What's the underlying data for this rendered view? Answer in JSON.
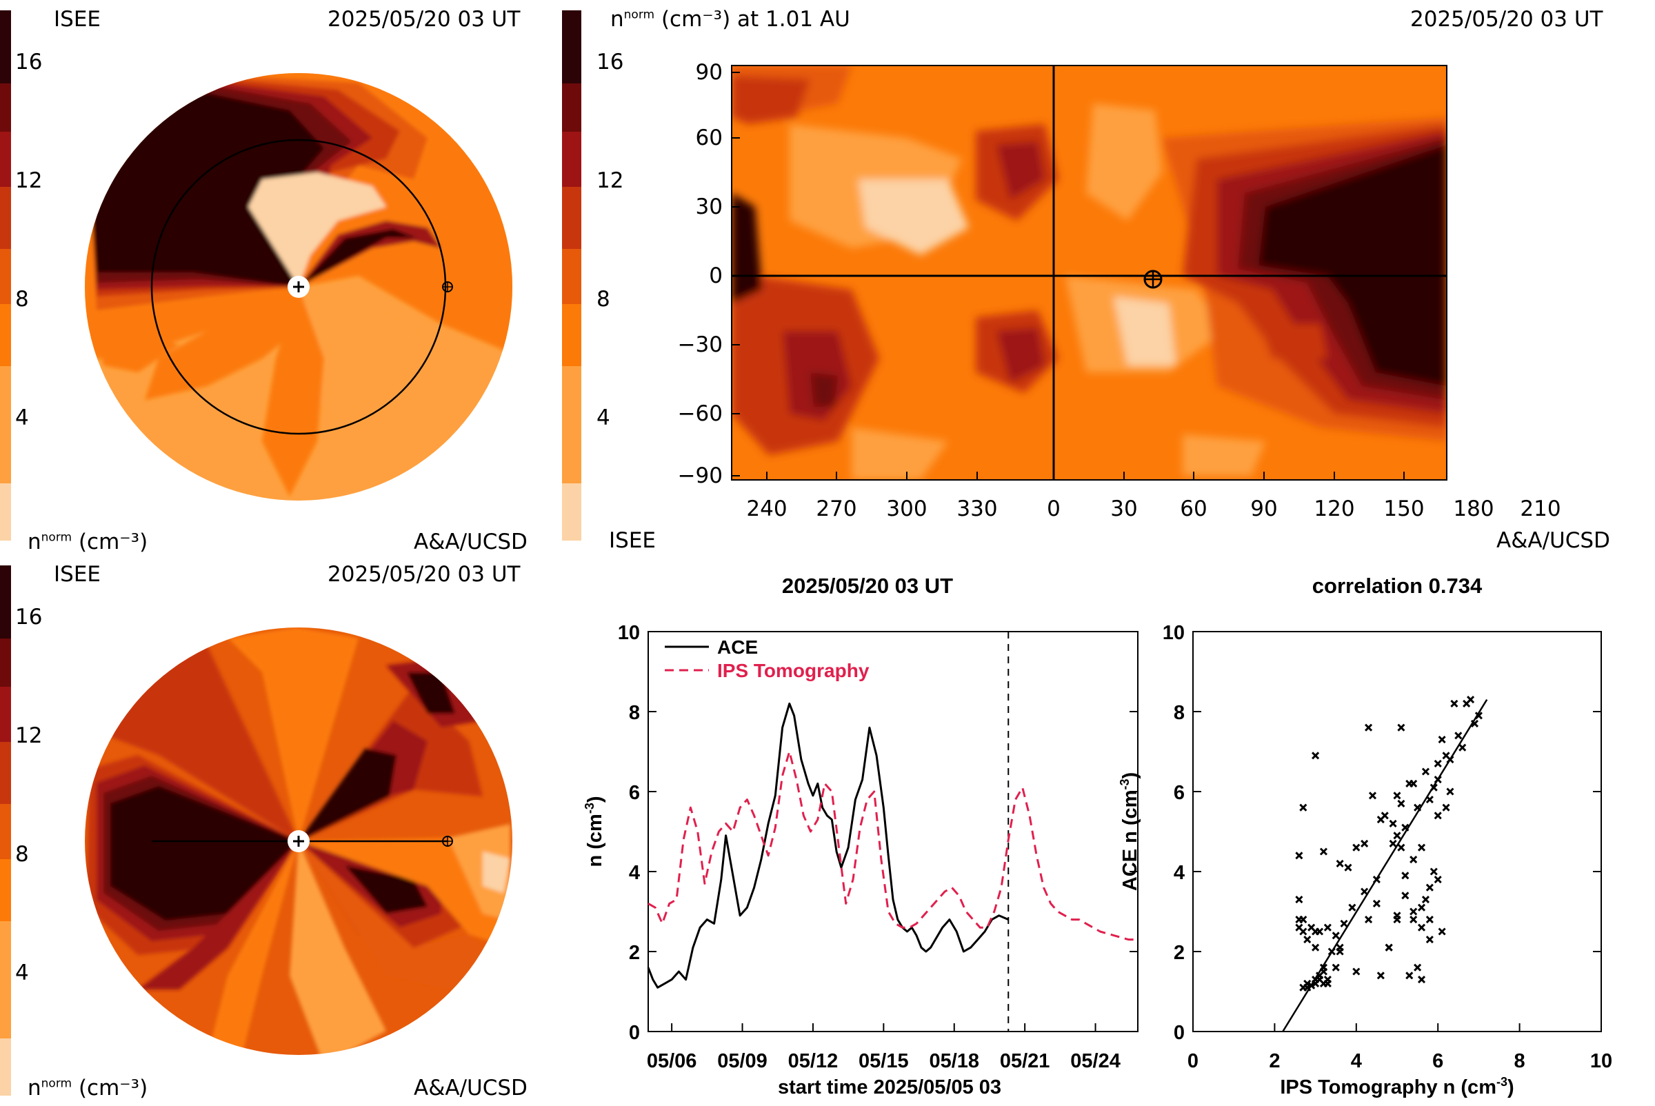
{
  "colors": {
    "scale": [
      "#fcd3a6",
      "#fea03f",
      "#fc7a08",
      "#e65a0a",
      "#c8360e",
      "#9e1414",
      "#6e0a0a",
      "#2c0306"
    ],
    "tomography": "#e0204d",
    "ace": "#000000"
  },
  "panel_tl": {
    "left_top": "ISEE",
    "right_top": "2025/05/20 03 UT",
    "left_bottom_base": "n",
    "left_bottom_sup": "norm",
    "left_bottom_unit": "(cm⁻³)",
    "right_bottom": "A&A/UCSD",
    "colorbar_ticks": [
      "16",
      "12",
      "8",
      "4"
    ],
    "earth_marker": "earth-symbol"
  },
  "panel_tr": {
    "title_base": "n",
    "title_sup": "norm",
    "title_rest": "(cm⁻³) at 1.01 AU",
    "right_top": "2025/05/20 03 UT",
    "bottom_left": "ISEE",
    "bottom_right": "A&A/UCSD",
    "colorbar_ticks": [
      "16",
      "12",
      "8",
      "4"
    ],
    "x_ticks": [
      "240",
      "270",
      "300",
      "330",
      "0",
      "30",
      "60",
      "90",
      "120",
      "150",
      "180",
      "210"
    ],
    "y_ticks": [
      "90",
      "60",
      "30",
      "0",
      "−30",
      "−60",
      "−90"
    ]
  },
  "panel_bl": {
    "left_top": "ISEE",
    "right_top": "2025/05/20 03 UT",
    "left_bottom_base": "n",
    "left_bottom_sup": "norm",
    "left_bottom_unit": "(cm⁻³)",
    "right_bottom": "A&A/UCSD",
    "colorbar_ticks": [
      "16",
      "12",
      "8",
      "4"
    ]
  },
  "chart_data": [
    {
      "type": "line",
      "title": "2025/05/20 03 UT",
      "xlabel": "start time 2025/05/05 03",
      "ylabel": "n (cm⁻³)",
      "xlim": [
        0,
        20.8
      ],
      "ylim": [
        0,
        10
      ],
      "x_tick_positions": [
        1,
        4,
        7,
        10,
        13,
        16,
        19
      ],
      "x_tick_labels": [
        "05/06",
        "05/09",
        "05/12",
        "05/15",
        "05/18",
        "05/21",
        "05/24"
      ],
      "y_ticks": [
        0,
        2,
        4,
        6,
        8,
        10
      ],
      "vline": 15.3,
      "legend": "top-left",
      "series": [
        {
          "name": "ACE",
          "style": "solid",
          "x": [
            0,
            0.2,
            0.4,
            0.7,
            1,
            1.3,
            1.6,
            1.9,
            2.2,
            2.5,
            2.8,
            3.1,
            3.3,
            3.6,
            3.9,
            4.2,
            4.5,
            4.8,
            5.1,
            5.4,
            5.7,
            6,
            6.2,
            6.5,
            6.8,
            7,
            7.2,
            7.4,
            7.6,
            7.8,
            8,
            8.2,
            8.5,
            8.8,
            9.1,
            9.4,
            9.7,
            10,
            10.2,
            10.4,
            10.6,
            10.8,
            11,
            11.2,
            11.4,
            11.6,
            11.8,
            12,
            12.2,
            12.5,
            12.8,
            13.1,
            13.4,
            13.7,
            14,
            14.3,
            14.6,
            14.9,
            15.3
          ],
          "y": [
            1.6,
            1.3,
            1.1,
            1.2,
            1.3,
            1.5,
            1.3,
            2.1,
            2.6,
            2.8,
            2.7,
            3.8,
            4.9,
            3.9,
            2.9,
            3.1,
            3.6,
            4.3,
            5.2,
            5.9,
            7.6,
            8.2,
            7.9,
            6.8,
            6.2,
            5.9,
            6.2,
            5.6,
            5.4,
            5.3,
            4.5,
            4.1,
            4.6,
            5.8,
            6.3,
            7.6,
            6.9,
            5.6,
            4.4,
            3.3,
            2.8,
            2.6,
            2.5,
            2.6,
            2.4,
            2.1,
            2.0,
            2.1,
            2.3,
            2.6,
            2.8,
            2.5,
            2.0,
            2.1,
            2.3,
            2.5,
            2.8,
            2.9,
            2.8
          ]
        },
        {
          "name": "IPS Tomography",
          "style": "dashed",
          "x": [
            0,
            0.3,
            0.6,
            0.9,
            1.2,
            1.5,
            1.8,
            2.1,
            2.4,
            2.7,
            3,
            3.3,
            3.6,
            3.9,
            4.2,
            4.5,
            4.8,
            5.1,
            5.4,
            5.7,
            6,
            6.3,
            6.6,
            6.9,
            7.2,
            7.5,
            7.8,
            8.1,
            8.4,
            8.7,
            9,
            9.3,
            9.6,
            9.9,
            10.2,
            10.5,
            10.8,
            11.1,
            11.4,
            11.7,
            12,
            12.3,
            12.6,
            12.9,
            13.2,
            13.5,
            13.8,
            14.1,
            14.4,
            14.7,
            15,
            15.3,
            15.6,
            15.9,
            16.2,
            16.5,
            16.8,
            17.1,
            17.4,
            17.7,
            18,
            18.3,
            18.6,
            18.9,
            19.2,
            19.5,
            19.8,
            20.1,
            20.4,
            20.7
          ],
          "y": [
            3.2,
            3.1,
            2.7,
            3.2,
            3.3,
            4.8,
            5.6,
            5.0,
            3.7,
            4.5,
            5.0,
            5.2,
            5.0,
            5.6,
            5.8,
            5.4,
            4.9,
            4.4,
            5.1,
            6.4,
            7.0,
            6.3,
            5.4,
            5.0,
            5.3,
            6.2,
            6.0,
            4.6,
            3.2,
            3.8,
            5.1,
            5.8,
            6.0,
            4.3,
            3.0,
            2.7,
            2.6,
            2.6,
            2.7,
            2.9,
            3.1,
            3.3,
            3.5,
            3.6,
            3.4,
            3.0,
            2.8,
            2.6,
            2.6,
            3.0,
            3.6,
            4.8,
            5.8,
            6.1,
            5.4,
            4.4,
            3.6,
            3.2,
            3.0,
            2.9,
            2.8,
            2.8,
            2.7,
            2.6,
            2.5,
            2.45,
            2.4,
            2.35,
            2.3,
            2.3
          ]
        }
      ]
    },
    {
      "type": "scatter",
      "title": "correlation 0.734",
      "xlabel": "IPS Tomography n (cm⁻³)",
      "ylabel": "ACE n (cm⁻³)",
      "xlim": [
        0,
        10
      ],
      "ylim": [
        0,
        10
      ],
      "x_ticks": [
        0,
        2,
        4,
        6,
        8,
        10
      ],
      "y_ticks": [
        0,
        2,
        4,
        6,
        8,
        10
      ],
      "fit_line": [
        [
          2.2,
          0
        ],
        [
          7.2,
          8.3
        ]
      ],
      "points": [
        [
          3.2,
          1.6
        ],
        [
          3.1,
          1.3
        ],
        [
          2.7,
          1.1
        ],
        [
          3.2,
          1.2
        ],
        [
          3.3,
          1.3
        ],
        [
          2.9,
          1.15
        ],
        [
          3.0,
          1.2
        ],
        [
          2.8,
          1.1
        ],
        [
          3.1,
          1.4
        ],
        [
          3.2,
          1.5
        ],
        [
          4.8,
          2.1
        ],
        [
          5.6,
          2.6
        ],
        [
          5.0,
          2.8
        ],
        [
          3.7,
          2.7
        ],
        [
          4.5,
          3.8
        ],
        [
          5.0,
          4.9
        ],
        [
          5.2,
          3.9
        ],
        [
          5.0,
          2.9
        ],
        [
          5.6,
          3.1
        ],
        [
          5.8,
          3.6
        ],
        [
          5.4,
          4.3
        ],
        [
          4.9,
          5.2
        ],
        [
          4.4,
          5.9
        ],
        [
          5.1,
          7.6
        ],
        [
          6.4,
          8.2
        ],
        [
          7.0,
          7.9
        ],
        [
          6.3,
          6.8
        ],
        [
          5.4,
          6.2
        ],
        [
          5.0,
          5.9
        ],
        [
          5.3,
          6.2
        ],
        [
          6.2,
          5.6
        ],
        [
          6.0,
          5.4
        ],
        [
          4.6,
          5.3
        ],
        [
          3.2,
          4.5
        ],
        [
          3.8,
          4.1
        ],
        [
          5.1,
          4.6
        ],
        [
          5.8,
          5.8
        ],
        [
          6.0,
          6.3
        ],
        [
          4.3,
          7.6
        ],
        [
          3.0,
          6.9
        ],
        [
          2.7,
          5.6
        ],
        [
          2.6,
          4.4
        ],
        [
          2.6,
          3.3
        ],
        [
          2.7,
          2.8
        ],
        [
          2.9,
          2.6
        ],
        [
          3.1,
          2.5
        ],
        [
          3.3,
          2.6
        ],
        [
          3.5,
          2.4
        ],
        [
          3.6,
          2.1
        ],
        [
          3.4,
          2.0
        ],
        [
          3.0,
          2.1
        ],
        [
          2.8,
          2.3
        ],
        [
          2.6,
          2.6
        ],
        [
          2.6,
          2.8
        ],
        [
          3.0,
          2.5
        ],
        [
          3.6,
          2.0
        ],
        [
          4.8,
          2.1
        ],
        [
          5.8,
          2.3
        ],
        [
          6.1,
          2.5
        ],
        [
          5.4,
          2.8
        ],
        [
          6.6,
          7.1
        ],
        [
          6.9,
          7.7
        ],
        [
          6.8,
          8.3
        ],
        [
          6.5,
          7.4
        ],
        [
          6.2,
          6.9
        ],
        [
          5.7,
          6.5
        ],
        [
          5.5,
          5.6
        ],
        [
          5.2,
          5.1
        ],
        [
          4.9,
          4.7
        ],
        [
          4.2,
          4.7
        ],
        [
          4.0,
          4.6
        ],
        [
          3.6,
          4.2
        ],
        [
          5.3,
          1.4
        ],
        [
          5.6,
          1.3
        ],
        [
          5.5,
          1.6
        ],
        [
          4.6,
          1.4
        ],
        [
          4.0,
          1.5
        ],
        [
          3.5,
          1.6
        ],
        [
          5.9,
          4.0
        ],
        [
          5.7,
          3.3
        ],
        [
          5.4,
          3.0
        ],
        [
          4.2,
          3.5
        ],
        [
          4.5,
          3.2
        ],
        [
          6.1,
          7.3
        ],
        [
          6.3,
          6.0
        ],
        [
          5.9,
          6.1
        ],
        [
          5.1,
          5.7
        ],
        [
          4.7,
          5.4
        ],
        [
          4.3,
          2.8
        ],
        [
          3.9,
          3.1
        ],
        [
          6.7,
          8.2
        ],
        [
          6.0,
          6.7
        ],
        [
          5.6,
          4.6
        ],
        [
          5.8,
          2.8
        ],
        [
          2.7,
          2.5
        ],
        [
          2.8,
          1.2
        ],
        [
          3.0,
          1.3
        ],
        [
          3.3,
          1.2
        ],
        [
          5.2,
          3.4
        ],
        [
          6.0,
          3.8
        ]
      ]
    }
  ]
}
